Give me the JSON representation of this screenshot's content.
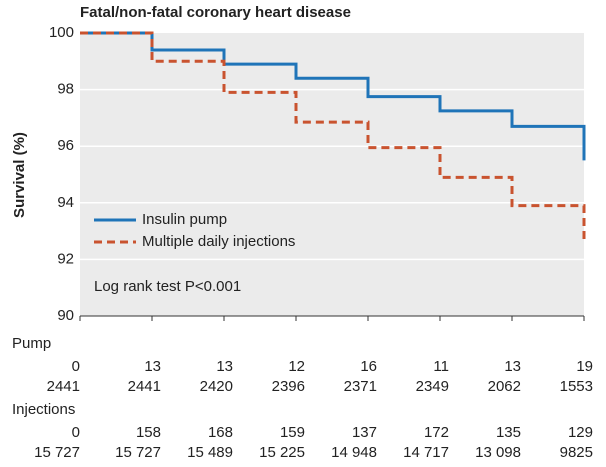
{
  "chart_data": {
    "type": "step",
    "title": "Fatal/non-fatal coronary heart disease",
    "ylabel": "Survival (%)",
    "annotation": "Log rank test P<0.001",
    "x": [
      0,
      1,
      1,
      2,
      2,
      3,
      3,
      4,
      4,
      5,
      5,
      6,
      6,
      7,
      7
    ],
    "xlim": [
      0,
      7
    ],
    "xticks": [
      0,
      1,
      2,
      3,
      4,
      5,
      6,
      7
    ],
    "ylim": [
      90,
      100
    ],
    "yticks": [
      90,
      92,
      94,
      96,
      98,
      100
    ],
    "grid": true,
    "legend": "lower left",
    "series": [
      {
        "name": "Insulin pump",
        "color": "#1f74b8",
        "dash": false,
        "values": [
          100,
          100,
          99.4,
          99.4,
          98.9,
          98.9,
          98.4,
          98.4,
          97.75,
          97.75,
          97.25,
          97.25,
          96.7,
          96.7,
          95.5
        ]
      },
      {
        "name": "Multiple daily injections",
        "color": "#c9532f",
        "dash": true,
        "values": [
          100,
          100,
          99.0,
          99.0,
          97.9,
          97.9,
          96.85,
          96.85,
          95.95,
          95.95,
          94.9,
          94.9,
          93.9,
          93.9,
          92.6
        ]
      }
    ],
    "risk_table": [
      {
        "name": "Pump",
        "rows": [
          [
            "0",
            "13",
            "13",
            "12",
            "16",
            "11",
            "13",
            "19"
          ],
          [
            "2441",
            "2441",
            "2420",
            "2396",
            "2371",
            "2349",
            "2062",
            "1553"
          ]
        ]
      },
      {
        "name": "Injections",
        "rows": [
          [
            "0",
            "158",
            "168",
            "159",
            "137",
            "172",
            "135",
            "129"
          ],
          [
            "15 727",
            "15 727",
            "15 489",
            "15 225",
            "14 948",
            "14 717",
            "13 098",
            "9825"
          ]
        ]
      }
    ]
  }
}
